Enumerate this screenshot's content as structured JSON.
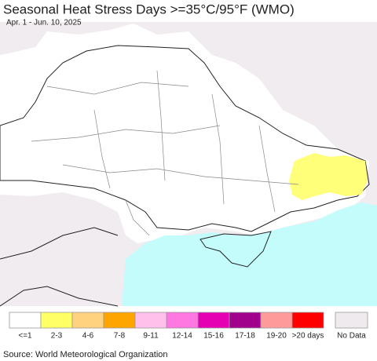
{
  "header": {
    "title": "Seasonal Heat Stress Days >=35°C/95°F (WMO)",
    "subtitle": "Apr. 1 - Jun. 10, 2025"
  },
  "legend": {
    "items": [
      {
        "label": "<=1",
        "color": "#ffffff"
      },
      {
        "label": "2-3",
        "color": "#ffff66"
      },
      {
        "label": "4-6",
        "color": "#ffd27f"
      },
      {
        "label": "7-8",
        "color": "#ffa500"
      },
      {
        "label": "9-11",
        "color": "#ffc0eb"
      },
      {
        "label": "12-14",
        "color": "#ff77e0"
      },
      {
        "label": "15-16",
        "color": "#e600b4"
      },
      {
        "label": "17-18",
        "color": "#a0008c"
      },
      {
        "label": "19-20",
        "color": "#ff9a9a"
      },
      {
        "label": ">20 days",
        "color": "#ff0000"
      },
      {
        "label": "No Data",
        "color": "#eeeaee"
      }
    ]
  },
  "source": "Source: World Meteorological Organization"
}
